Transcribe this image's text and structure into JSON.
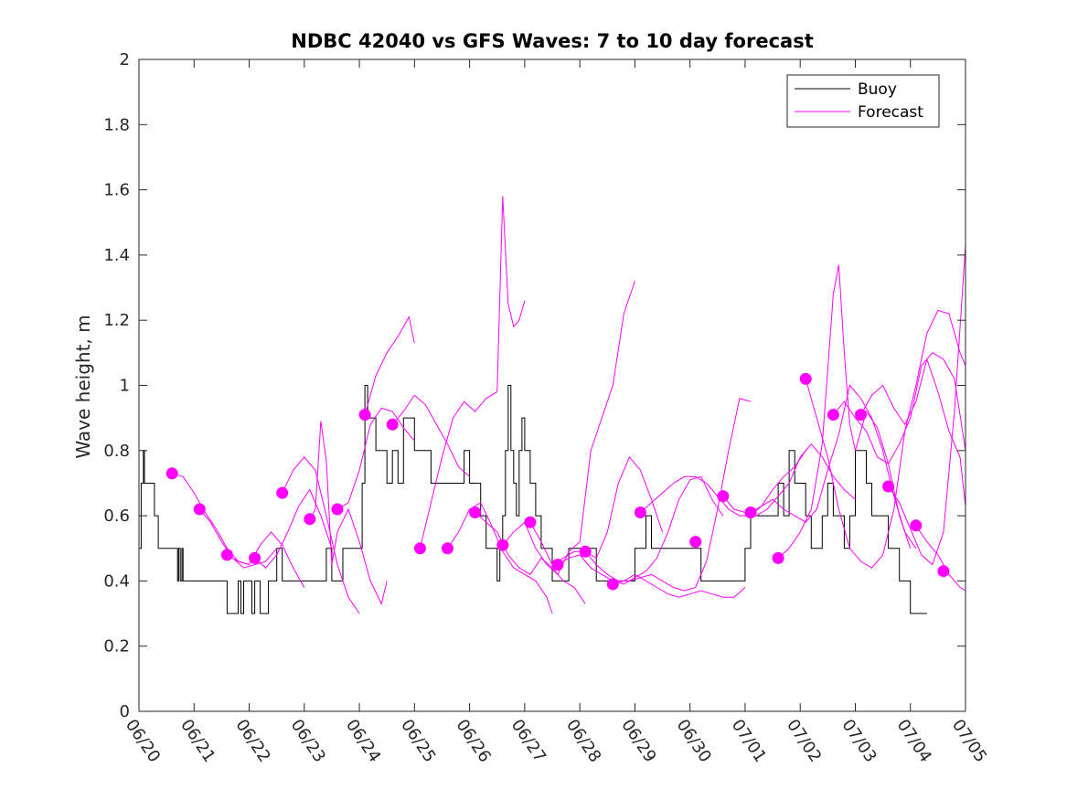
{
  "chart_data": {
    "type": "line",
    "title": "NDBC 42040 vs GFS Waves: 7 to 10 day forecast",
    "xlabel": "",
    "ylabel": "Wave height, m",
    "xlim": [
      0,
      15
    ],
    "ylim": [
      0,
      2
    ],
    "grid": false,
    "legend_position": "top-right",
    "x_tick_labels": [
      "06/20",
      "06/21",
      "06/22",
      "06/23",
      "06/24",
      "06/25",
      "06/26",
      "06/27",
      "06/28",
      "06/29",
      "06/30",
      "07/01",
      "07/02",
      "07/03",
      "07/04",
      "07/05"
    ],
    "y_ticks": [
      0,
      0.2,
      0.4,
      0.6,
      0.8,
      1,
      1.2,
      1.4,
      1.6,
      1.8,
      2
    ],
    "y_tick_labels": [
      "0",
      "0.2",
      "0.4",
      "0.6",
      "0.8",
      "1",
      "1.2",
      "1.4",
      "1.6",
      "1.8",
      "2"
    ],
    "colors": {
      "buoy": "#000000",
      "forecast": "#ff00ff"
    },
    "legend": [
      {
        "label": "Buoy",
        "color": "#000000"
      },
      {
        "label": "Forecast",
        "color": "#ff00ff"
      }
    ],
    "series": [
      {
        "name": "Buoy",
        "x": [
          0,
          0.04,
          0.08,
          0.1,
          0.25,
          0.28,
          0.3,
          0.35,
          0.4,
          0.45,
          0.5,
          0.55,
          0.7,
          0.72,
          0.75,
          0.78,
          0.8,
          0.82,
          0.9,
          1,
          1.2,
          1.4,
          1.5,
          1.6,
          1.7,
          1.75,
          1.8,
          1.85,
          1.9,
          2,
          2.05,
          2.1,
          2.2,
          2.3,
          2.35,
          2.4,
          2.5,
          2.6,
          2.7,
          2.8,
          3,
          3.2,
          3.3,
          3.4,
          3.5,
          3.6,
          3.7,
          3.75,
          3.8,
          3.9,
          4.0,
          4.05,
          4.1,
          4.15,
          4.2,
          4.3,
          4.4,
          4.5,
          4.6,
          4.7,
          4.8,
          4.9,
          5,
          5.1,
          5.2,
          5.3,
          5.4,
          5.5,
          5.6,
          5.7,
          5.8,
          5.9,
          6,
          6.1,
          6.2,
          6.3,
          6.4,
          6.5,
          6.55,
          6.6,
          6.65,
          6.7,
          6.75,
          6.8,
          6.85,
          6.9,
          6.95,
          7,
          7.1,
          7.2,
          7.3,
          7.4,
          7.5,
          7.6,
          7.7,
          7.8,
          8,
          8.1,
          8.2,
          8.3,
          8.4,
          8.5,
          8.6,
          8.7,
          8.8,
          8.9,
          9,
          9.1,
          9.2,
          9.3,
          9.4,
          9.5,
          9.6,
          9.7,
          9.8,
          9.9,
          10,
          10.1,
          10.2,
          10.3,
          10.4,
          10.5,
          10.6,
          10.7,
          10.8,
          10.9,
          11,
          11.1,
          11.2,
          11.3,
          11.4,
          11.5,
          11.6,
          11.7,
          11.8,
          11.9,
          12,
          12.1,
          12.2,
          12.3,
          12.4,
          12.5,
          12.6,
          12.7,
          12.8,
          12.9,
          13,
          13.1,
          13.2,
          13.3,
          13.4,
          13.5,
          13.6,
          13.7,
          13.8,
          13.9,
          14,
          14.1,
          14.2,
          14.3
        ],
        "values": [
          0.5,
          0.7,
          0.8,
          0.7,
          0.7,
          0.6,
          0.6,
          0.5,
          0.5,
          0.5,
          0.5,
          0.5,
          0.4,
          0.5,
          0.4,
          0.5,
          0.4,
          0.4,
          0.4,
          0.4,
          0.4,
          0.4,
          0.4,
          0.3,
          0.3,
          0.3,
          0.4,
          0.3,
          0.4,
          0.4,
          0.3,
          0.4,
          0.3,
          0.3,
          0.4,
          0.4,
          0.5,
          0.4,
          0.4,
          0.4,
          0.4,
          0.4,
          0.4,
          0.5,
          0.4,
          0.4,
          0.5,
          0.5,
          0.5,
          0.5,
          0.5,
          0.7,
          1,
          0.9,
          0.9,
          0.8,
          0.8,
          0.7,
          0.8,
          0.7,
          0.9,
          0.9,
          0.8,
          0.8,
          0.8,
          0.7,
          0.7,
          0.7,
          0.7,
          0.7,
          0.7,
          0.8,
          0.7,
          0.7,
          0.6,
          0.5,
          0.5,
          0.4,
          0.5,
          0.6,
          0.8,
          1,
          0.8,
          0.7,
          0.6,
          0.8,
          0.9,
          0.8,
          0.7,
          0.6,
          0.5,
          0.5,
          0.4,
          0.4,
          0.4,
          0.5,
          0.5,
          0.5,
          0.5,
          0.4,
          0.4,
          0.4,
          0.4,
          0.4,
          0.4,
          0.4,
          0.5,
          0.5,
          0.6,
          0.5,
          0.5,
          0.5,
          0.5,
          0.5,
          0.5,
          0.5,
          0.5,
          0.5,
          0.4,
          0.4,
          0.4,
          0.4,
          0.4,
          0.4,
          0.4,
          0.4,
          0.5,
          0.6,
          0.6,
          0.6,
          0.6,
          0.6,
          0.7,
          0.6,
          0.8,
          0.7,
          0.7,
          0.6,
          0.5,
          0.5,
          0.6,
          0.7,
          0.6,
          0.6,
          0.5,
          0.6,
          0.8,
          0.8,
          0.7,
          0.6,
          0.6,
          0.6,
          0.5,
          0.5,
          0.4,
          0.4,
          0.3,
          0.3,
          0.3,
          0.3
        ]
      },
      {
        "name": "Forecast",
        "x": [
          0.6,
          0.8,
          1.0,
          1.2,
          1.4,
          1.6,
          1.8,
          2.0
        ],
        "values": [
          0.73,
          0.72,
          0.67,
          0.61,
          0.56,
          0.5,
          0.46,
          0.45
        ]
      },
      {
        "name": "Forecast",
        "x": [
          1.1,
          1.3,
          1.5,
          1.7,
          1.9,
          2.1,
          2.3,
          2.5
        ],
        "values": [
          0.62,
          0.58,
          0.52,
          0.47,
          0.44,
          0.45,
          0.46,
          0.5
        ]
      },
      {
        "name": "Forecast",
        "x": [
          1.6,
          1.8,
          2.0,
          2.2,
          2.4,
          2.6,
          2.8,
          3.0
        ],
        "values": [
          0.48,
          0.46,
          0.45,
          0.51,
          0.55,
          0.51,
          0.44,
          0.38
        ]
      },
      {
        "name": "Forecast",
        "x": [
          2.1,
          2.3,
          2.5,
          2.7,
          2.9,
          3.1,
          3.3,
          3.5
        ],
        "values": [
          0.47,
          0.44,
          0.48,
          0.55,
          0.63,
          0.68,
          0.6,
          0.5
        ]
      },
      {
        "name": "Forecast",
        "x": [
          2.6,
          2.8,
          3.0,
          3.2,
          3.4,
          3.6,
          3.8,
          4.0
        ],
        "values": [
          0.67,
          0.74,
          0.78,
          0.74,
          0.6,
          0.45,
          0.35,
          0.3
        ]
      },
      {
        "name": "Forecast",
        "x": [
          3.1,
          3.2,
          3.3,
          3.4,
          3.5,
          3.6,
          3.8,
          4.0,
          4.2,
          4.4,
          4.5
        ],
        "values": [
          0.59,
          0.62,
          0.89,
          0.77,
          0.45,
          0.55,
          0.62,
          0.52,
          0.4,
          0.33,
          0.4
        ]
      },
      {
        "name": "Forecast",
        "x": [
          3.6,
          3.8,
          4.0,
          4.2,
          4.4,
          4.6,
          4.8,
          5.0
        ],
        "values": [
          0.62,
          0.64,
          0.74,
          0.88,
          0.93,
          0.92,
          0.87,
          0.83
        ]
      },
      {
        "name": "Forecast",
        "x": [
          4.1,
          4.3,
          4.5,
          4.7,
          4.9,
          5.0
        ],
        "values": [
          0.91,
          1.03,
          1.1,
          1.15,
          1.21,
          1.13
        ]
      },
      {
        "name": "Forecast",
        "x": [
          4.6,
          4.8,
          5.0,
          5.2,
          5.4,
          5.6,
          5.8,
          6.0
        ],
        "values": [
          0.88,
          0.92,
          0.97,
          0.94,
          0.88,
          0.82,
          0.75,
          0.72
        ]
      },
      {
        "name": "Forecast",
        "x": [
          5.1,
          5.3,
          5.5,
          5.7,
          5.9,
          6.1,
          6.3,
          6.5,
          6.6,
          6.7,
          6.8,
          6.9,
          7.0
        ],
        "values": [
          0.5,
          0.64,
          0.78,
          0.9,
          0.95,
          0.92,
          0.96,
          0.98,
          1.58,
          1.25,
          1.18,
          1.2,
          1.26
        ]
      },
      {
        "name": "Forecast",
        "x": [
          5.6,
          5.8,
          6.0,
          6.2,
          6.4,
          6.6,
          6.8,
          7.0,
          7.2,
          7.4,
          7.5
        ],
        "values": [
          0.5,
          0.55,
          0.62,
          0.64,
          0.57,
          0.49,
          0.44,
          0.42,
          0.4,
          0.35,
          0.3
        ]
      },
      {
        "name": "Forecast",
        "x": [
          6.1,
          6.3,
          6.5,
          6.7,
          6.9,
          7.1,
          7.3,
          7.5,
          7.7,
          7.9,
          8.1
        ],
        "values": [
          0.61,
          0.58,
          0.55,
          0.48,
          0.44,
          0.42,
          0.47,
          0.44,
          0.4,
          0.38,
          0.33
        ]
      },
      {
        "name": "Forecast",
        "x": [
          6.6,
          6.8,
          7.0,
          7.2,
          7.4,
          7.6,
          7.8,
          8.0,
          8.2,
          8.4,
          8.6,
          8.8,
          9.0
        ],
        "values": [
          0.51,
          0.55,
          0.58,
          0.5,
          0.45,
          0.42,
          0.49,
          0.52,
          0.8,
          0.9,
          1.0,
          1.22,
          1.32
        ]
      },
      {
        "name": "Forecast",
        "x": [
          7.1,
          7.3,
          7.5,
          7.7,
          7.9,
          8.1,
          8.3,
          8.5,
          8.7,
          8.9,
          9.1,
          9.3,
          9.5
        ],
        "values": [
          0.58,
          0.52,
          0.45,
          0.47,
          0.49,
          0.49,
          0.47,
          0.55,
          0.7,
          0.78,
          0.74,
          0.65,
          0.55
        ]
      },
      {
        "name": "Forecast",
        "x": [
          7.6,
          7.8,
          8.0,
          8.2,
          8.4,
          8.6,
          8.8,
          9.0,
          9.2,
          9.4,
          9.6,
          9.8,
          10.0,
          10.2,
          10.4,
          10.6
        ],
        "values": [
          0.45,
          0.47,
          0.48,
          0.44,
          0.42,
          0.4,
          0.39,
          0.41,
          0.43,
          0.47,
          0.55,
          0.65,
          0.71,
          0.72,
          0.65,
          0.6
        ]
      },
      {
        "name": "Forecast",
        "x": [
          8.1,
          8.3,
          8.5,
          8.7,
          8.9,
          9.1,
          9.3,
          9.5,
          9.7,
          9.9,
          10.1,
          10.3,
          10.5,
          10.7,
          10.9,
          11.1
        ],
        "values": [
          0.49,
          0.45,
          0.42,
          0.4,
          0.4,
          0.41,
          0.42,
          0.4,
          0.38,
          0.37,
          0.38,
          0.46,
          0.62,
          0.8,
          0.96,
          0.95
        ]
      },
      {
        "name": "Forecast",
        "x": [
          8.6,
          8.8,
          9.0,
          9.2,
          9.4,
          9.6,
          9.8,
          10.0,
          10.2,
          10.4,
          10.6,
          10.8,
          11.0
        ],
        "values": [
          0.39,
          0.4,
          0.42,
          0.4,
          0.38,
          0.36,
          0.35,
          0.36,
          0.37,
          0.36,
          0.35,
          0.35,
          0.38
        ]
      },
      {
        "name": "Forecast",
        "x": [
          9.1,
          9.3,
          9.5,
          9.7,
          9.9,
          10.1,
          10.3,
          10.5,
          10.7,
          10.9,
          11.1,
          11.3,
          11.5,
          11.7,
          11.9,
          12.1
        ],
        "values": [
          0.61,
          0.64,
          0.67,
          0.7,
          0.72,
          0.72,
          0.7,
          0.66,
          0.62,
          0.6,
          0.6,
          0.63,
          0.68,
          0.72,
          0.75,
          0.8
        ]
      },
      {
        "name": "Forecast",
        "x": [
          10.6,
          10.8,
          11.0,
          11.2,
          11.4,
          11.6,
          11.8,
          12.0,
          12.2,
          12.4,
          12.6,
          12.8,
          13.0
        ],
        "values": [
          0.66,
          0.62,
          0.61,
          0.6,
          0.62,
          0.66,
          0.7,
          0.78,
          0.82,
          0.78,
          0.72,
          0.68,
          0.65
        ]
      },
      {
        "name": "Forecast",
        "x": [
          11.1,
          11.3,
          11.5,
          11.7,
          11.9,
          12.1,
          12.3,
          12.5,
          12.7,
          12.9,
          13.1,
          13.3,
          13.5,
          13.7,
          13.9,
          14.1
        ],
        "values": [
          0.61,
          0.63,
          0.65,
          0.62,
          0.6,
          0.58,
          0.62,
          0.74,
          0.85,
          1.0,
          0.96,
          0.9,
          0.8,
          0.66,
          0.55,
          0.5
        ]
      },
      {
        "name": "Forecast",
        "x": [
          11.6,
          11.8,
          12.0,
          12.2,
          12.4,
          12.6,
          12.7,
          12.8,
          12.9,
          13.0,
          13.2,
          13.4,
          13.6,
          13.8,
          14.0
        ],
        "values": [
          0.47,
          0.5,
          0.55,
          0.62,
          0.82,
          1.28,
          1.37,
          1.1,
          0.88,
          0.8,
          0.92,
          0.87,
          0.76,
          0.6,
          0.5
        ]
      },
      {
        "name": "Forecast",
        "x": [
          12.1,
          12.3,
          12.5,
          12.7,
          12.9,
          13.1,
          13.3,
          13.5,
          13.7,
          13.9,
          14.1,
          14.3,
          14.5,
          14.7,
          14.9,
          15.0
        ],
        "values": [
          1.02,
          0.9,
          0.78,
          0.62,
          0.5,
          0.46,
          0.44,
          0.48,
          0.62,
          0.86,
          1.0,
          1.16,
          1.23,
          1.22,
          1.1,
          1.06
        ]
      },
      {
        "name": "Forecast",
        "x": [
          12.6,
          12.8,
          13.0,
          13.2,
          13.4,
          13.6,
          13.8,
          14.0,
          14.2,
          14.4,
          14.6,
          14.8,
          15.0
        ],
        "values": [
          0.91,
          0.95,
          0.9,
          0.86,
          0.78,
          0.76,
          0.82,
          0.9,
          1.06,
          1.1,
          1.08,
          1.02,
          0.8
        ]
      },
      {
        "name": "Forecast",
        "x": [
          13.1,
          13.3,
          13.5,
          13.7,
          13.9,
          14.1,
          14.3,
          14.5,
          14.7,
          14.9,
          15.0
        ],
        "values": [
          0.91,
          0.97,
          1.0,
          0.93,
          0.88,
          0.95,
          1.08,
          0.98,
          0.86,
          0.78,
          0.63
        ]
      },
      {
        "name": "Forecast",
        "x": [
          13.6,
          13.8,
          14.0,
          14.2,
          14.4,
          14.6,
          14.8,
          15.0
        ],
        "values": [
          0.69,
          0.64,
          0.56,
          0.48,
          0.45,
          0.55,
          0.92,
          1.43
        ]
      },
      {
        "name": "Forecast",
        "x": [
          14.1,
          14.3,
          14.5,
          14.7,
          14.9,
          15.0
        ],
        "values": [
          0.57,
          0.52,
          0.48,
          0.42,
          0.38,
          0.37
        ]
      }
    ],
    "forecast_markers": [
      {
        "x": 0.6,
        "y": 0.73
      },
      {
        "x": 1.1,
        "y": 0.62
      },
      {
        "x": 1.6,
        "y": 0.48
      },
      {
        "x": 2.1,
        "y": 0.47
      },
      {
        "x": 2.6,
        "y": 0.67
      },
      {
        "x": 3.1,
        "y": 0.59
      },
      {
        "x": 3.6,
        "y": 0.62
      },
      {
        "x": 4.1,
        "y": 0.91
      },
      {
        "x": 4.6,
        "y": 0.88
      },
      {
        "x": 5.1,
        "y": 0.5
      },
      {
        "x": 5.6,
        "y": 0.5
      },
      {
        "x": 6.1,
        "y": 0.61
      },
      {
        "x": 6.6,
        "y": 0.51
      },
      {
        "x": 7.1,
        "y": 0.58
      },
      {
        "x": 7.6,
        "y": 0.45
      },
      {
        "x": 8.1,
        "y": 0.49
      },
      {
        "x": 8.6,
        "y": 0.39
      },
      {
        "x": 9.1,
        "y": 0.61
      },
      {
        "x": 10.1,
        "y": 0.52
      },
      {
        "x": 10.6,
        "y": 0.66
      },
      {
        "x": 11.1,
        "y": 0.61
      },
      {
        "x": 11.6,
        "y": 0.47
      },
      {
        "x": 12.1,
        "y": 1.02
      },
      {
        "x": 12.6,
        "y": 0.91
      },
      {
        "x": 13.1,
        "y": 0.91
      },
      {
        "x": 13.6,
        "y": 0.69
      },
      {
        "x": 14.1,
        "y": 0.57
      },
      {
        "x": 14.6,
        "y": 0.43
      }
    ]
  }
}
